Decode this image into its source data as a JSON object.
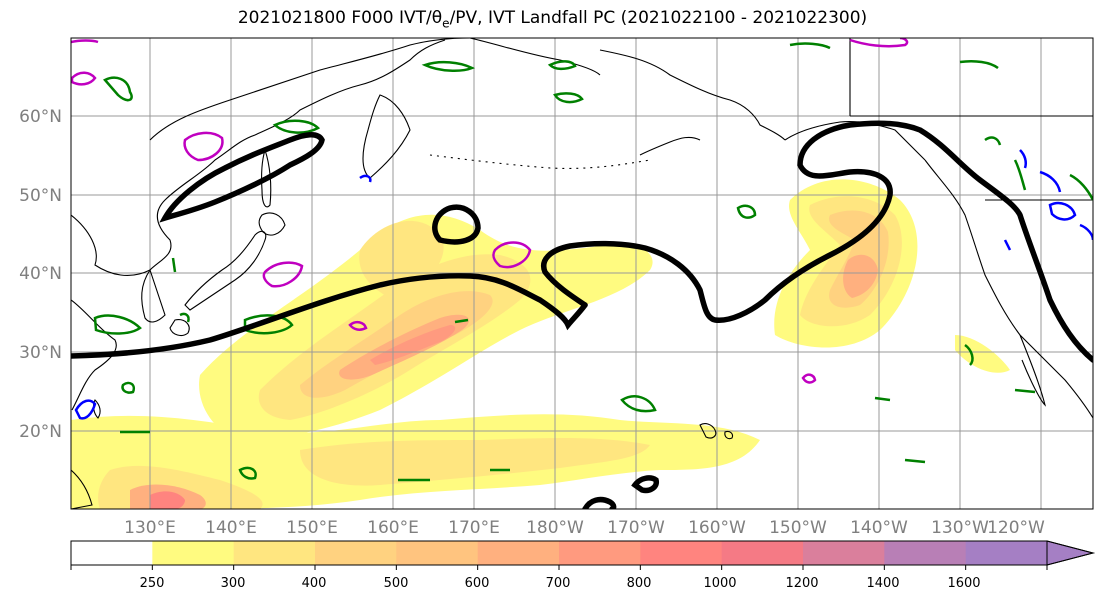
{
  "title": {
    "prefix": "2021021800 F000 IVT/θ",
    "subscript": "e",
    "suffix": "/PV, IVT Landfall PC (2021022100 - 2021022300)"
  },
  "map": {
    "lat_labels": [
      "60°N",
      "50°N",
      "40°N",
      "30°N",
      "20°N"
    ],
    "lon_labels": [
      "130°E",
      "140°E",
      "150°E",
      "160°E",
      "170°E",
      "180°W",
      "170°W",
      "160°W",
      "150°W",
      "140°W",
      "130°W",
      "120°W"
    ]
  },
  "colorbar": {
    "tick_labels": [
      "250",
      "300",
      "400",
      "500",
      "600",
      "700",
      "800",
      "1000",
      "1200",
      "1400",
      "1600"
    ],
    "colors": [
      "#ffffff",
      "#fffb80",
      "#ffe680",
      "#ffd280",
      "#ffc47f",
      "#ffb07f",
      "#ff9a7f",
      "#ff847f",
      "#f57a85",
      "#da7f9c",
      "#b87fb6",
      "#a57fc4"
    ]
  },
  "colors": {
    "theta_e": "#008000",
    "pv_purple": "#c000c0",
    "pv_blue": "#0000ff",
    "landfall_pc": "#000000"
  }
}
